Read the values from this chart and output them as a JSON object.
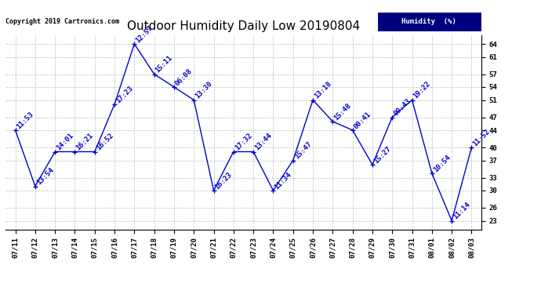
{
  "title": "Outdoor Humidity Daily Low 20190804",
  "copyright": "Copyright 2019 Cartronics.com",
  "legend_label": "Humidity  (%)",
  "x_labels": [
    "07/11",
    "07/12",
    "07/13",
    "07/14",
    "07/15",
    "07/16",
    "07/17",
    "07/18",
    "07/19",
    "07/20",
    "07/21",
    "07/22",
    "07/23",
    "07/24",
    "07/25",
    "07/26",
    "07/27",
    "07/28",
    "07/29",
    "07/30",
    "07/31",
    "08/01",
    "08/02",
    "08/03"
  ],
  "y_values": [
    44,
    31,
    39,
    39,
    39,
    50,
    64,
    57,
    54,
    51,
    30,
    39,
    39,
    30,
    37,
    51,
    46,
    44,
    36,
    47,
    51,
    34,
    23,
    40
  ],
  "point_labels": [
    "11:53",
    "13:54",
    "14:01",
    "16:21",
    "16:52",
    "17:23",
    "12:57",
    "15:11",
    "06:08",
    "13:30",
    "16:23",
    "17:32",
    "13:44",
    "11:34",
    "15:47",
    "13:18",
    "15:48",
    "00:41",
    "15:27",
    "09:43",
    "19:22",
    "10:54",
    "11:14",
    "11:52"
  ],
  "line_color": "#0000cc",
  "marker_color": "#0000cc",
  "background_color": "#ffffff",
  "grid_color": "#bbbbbb",
  "ylim": [
    21,
    66
  ],
  "yticks": [
    23,
    26,
    30,
    33,
    37,
    40,
    44,
    47,
    51,
    54,
    57,
    61,
    64
  ],
  "title_fontsize": 11,
  "label_fontsize": 6.5,
  "annotation_fontsize": 6.5,
  "copyright_fontsize": 6
}
